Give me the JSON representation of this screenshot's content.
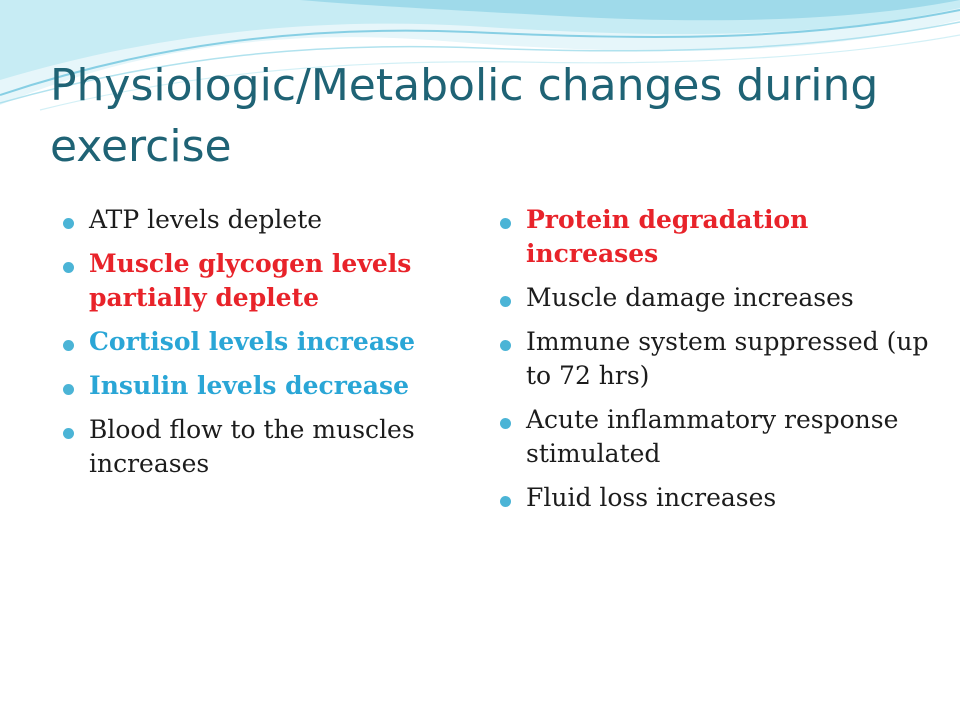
{
  "slide": {
    "title": "Physiologic/Metabolic changes during exercise",
    "left_bullets": [
      {
        "text": "ATP levels deplete",
        "style": "normal"
      },
      {
        "text": "Muscle glycogen levels partially deplete",
        "style": "red"
      },
      {
        "text": "Cortisol levels increase",
        "style": "blue"
      },
      {
        "text": "Insulin levels decrease",
        "style": "blue"
      },
      {
        "text": "Blood flow to the muscles increases",
        "style": "normal"
      }
    ],
    "right_bullets": [
      {
        "text": "Protein degradation increases",
        "style": "red"
      },
      {
        "text": "Muscle damage increases",
        "style": "normal"
      },
      {
        "text": "Immune system suppressed (up to 72 hrs)",
        "style": "normal"
      },
      {
        "text": "Acute inflammatory response stimulated",
        "style": "normal"
      },
      {
        "text": "Fluid loss increases",
        "style": "normal"
      }
    ]
  },
  "colors": {
    "title": "#1f6375",
    "bullet_marker": "#4bb4d6",
    "emphasis_red": "#e8232a",
    "emphasis_blue": "#2aa6d6",
    "body_text": "#1c1c1c",
    "wave_light": "#c7ecf4",
    "wave_mid": "#8fd3e6"
  },
  "icons": {
    "bullet": "filled-circle"
  }
}
